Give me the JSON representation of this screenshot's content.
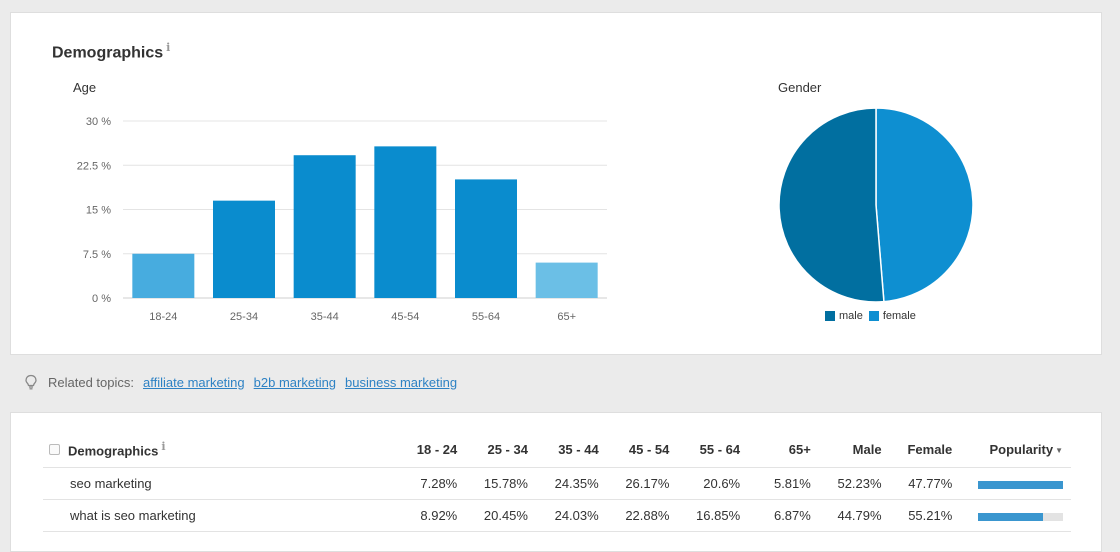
{
  "demographics_card": {
    "title": "Demographics",
    "info_glyph": "i"
  },
  "chart_data": [
    {
      "type": "bar",
      "title": "Age",
      "categories": [
        "18-24",
        "25-34",
        "35-44",
        "45-54",
        "55-64",
        "65+"
      ],
      "values": [
        7.5,
        16.5,
        24.2,
        25.7,
        20.1,
        6.0
      ],
      "colors": [
        "#47acdf",
        "#0a8cce",
        "#0a8cce",
        "#0a8cce",
        "#0a8cce",
        "#6bbfe6"
      ],
      "ylim": [
        0,
        30
      ],
      "yticks": [
        0,
        7.5,
        15,
        22.5,
        30
      ],
      "ytick_labels": [
        "0 %",
        "7.5 %",
        "15 %",
        "22.5 %",
        "30 %"
      ],
      "grid": true
    },
    {
      "type": "pie",
      "title": "Gender",
      "labels": [
        "male",
        "female"
      ],
      "values": [
        51.3,
        48.7
      ],
      "colors": [
        "#016fa0",
        "#0e8fd1"
      ],
      "legend_position": "bottom"
    }
  ],
  "related": {
    "label": "Related topics:",
    "links": [
      "affiliate marketing",
      "b2b marketing",
      "business marketing"
    ]
  },
  "table": {
    "headers": [
      "Demographics",
      "18 - 24",
      "25 - 34",
      "35 - 44",
      "45 - 54",
      "55 - 64",
      "65+",
      "Male",
      "Female",
      "Popularity"
    ],
    "rows": [
      {
        "topic": "seo marketing",
        "cells": [
          "7.28%",
          "15.78%",
          "24.35%",
          "26.17%",
          "20.6%",
          "5.81%",
          "52.23%",
          "47.77%"
        ],
        "popularity": 1.0
      },
      {
        "topic": "what is seo marketing",
        "cells": [
          "8.92%",
          "20.45%",
          "24.03%",
          "22.88%",
          "16.85%",
          "6.87%",
          "44.79%",
          "55.21%"
        ],
        "popularity": 0.77
      }
    ]
  }
}
